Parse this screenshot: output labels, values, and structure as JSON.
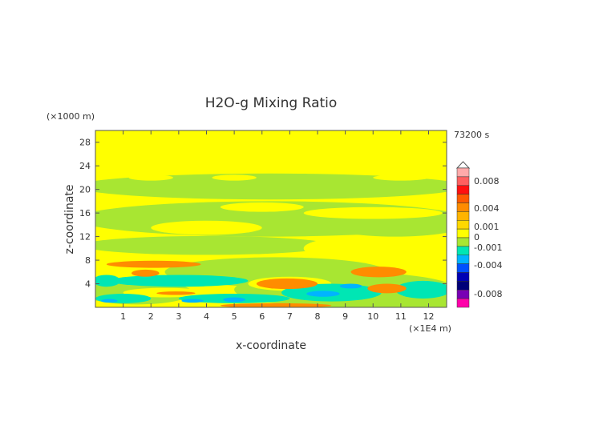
{
  "chart_data": {
    "type": "heatmap",
    "title": "H2O-g Mixing Ratio",
    "xlabel": "x-coordinate",
    "ylabel": "z-coordinate",
    "x_unit": "(×1E4 m)",
    "y_unit": "(×1000 m)",
    "time_label": "73200 s",
    "xlim": [
      0,
      12.65
    ],
    "ylim": [
      0,
      30
    ],
    "x_ticks": [
      "1",
      "2",
      "3",
      "4",
      "5",
      "6",
      "7",
      "8",
      "9",
      "10",
      "11",
      "12"
    ],
    "y_ticks": [
      "4",
      "8",
      "12",
      "16",
      "20",
      "24",
      "28"
    ],
    "colorbar": {
      "labels": [
        "0.008",
        "0.004",
        "0.001",
        "0",
        "-0.001",
        "-0.004",
        "-0.008"
      ],
      "levels": [
        {
          "min": 0.008,
          "color": "#ffaaaa"
        },
        {
          "min": 0.006,
          "color": "#ff6060"
        },
        {
          "min": 0.004,
          "color": "#ff1010"
        },
        {
          "min": 0.003,
          "color": "#ff5a00"
        },
        {
          "min": 0.002,
          "color": "#ff8c00"
        },
        {
          "min": 0.001,
          "color": "#ffb400"
        },
        {
          "min": 0.0005,
          "color": "#ffd800"
        },
        {
          "min": 0,
          "color": "#ffff00"
        },
        {
          "min": -0.0005,
          "color": "#a8e632"
        },
        {
          "min": -0.001,
          "color": "#00e6b4"
        },
        {
          "min": -0.002,
          "color": "#00b4ff"
        },
        {
          "min": -0.004,
          "color": "#0050ff"
        },
        {
          "min": -0.006,
          "color": "#0000b4"
        },
        {
          "min": -0.007,
          "color": "#000078"
        },
        {
          "min": -0.008,
          "color": "#7800b4"
        },
        {
          "min": -0.01,
          "color": "#ff00aa"
        }
      ]
    },
    "background_level_color": "#ffff00",
    "regions": [
      {
        "x": 6.3,
        "z": 20.5,
        "rx": 7,
        "rz": 2.2,
        "color": "#a8e632"
      },
      {
        "x": 6.3,
        "z": 15,
        "rx": 7,
        "rz": 3,
        "color": "#a8e632"
      },
      {
        "x": 4,
        "z": 10.5,
        "rx": 4.5,
        "rz": 1.6,
        "color": "#a8e632"
      },
      {
        "x": 10.8,
        "z": 14,
        "rx": 2.5,
        "rz": 2,
        "color": "#a8e632"
      },
      {
        "x": 6.5,
        "z": 6,
        "rx": 4,
        "rz": 2.5,
        "color": "#a8e632"
      },
      {
        "x": 9,
        "z": 3,
        "rx": 4,
        "rz": 3,
        "color": "#a8e632"
      },
      {
        "x": 1.5,
        "z": 2.5,
        "rx": 2,
        "rz": 2,
        "color": "#a8e632"
      },
      {
        "x": 11,
        "z": 1.5,
        "rx": 2.5,
        "rz": 2,
        "color": "#a8e632"
      },
      {
        "x": 2,
        "z": 22,
        "rx": 0.8,
        "rz": 0.5,
        "color": "#ffff00"
      },
      {
        "x": 5,
        "z": 22,
        "rx": 0.8,
        "rz": 0.5,
        "color": "#ffff00"
      },
      {
        "x": 11,
        "z": 22,
        "rx": 1,
        "rz": 0.5,
        "color": "#ffff00"
      },
      {
        "x": 6,
        "z": 17,
        "rx": 1.5,
        "rz": 0.8,
        "color": "#ffff00"
      },
      {
        "x": 10,
        "z": 16,
        "rx": 2.5,
        "rz": 1,
        "color": "#ffff00"
      },
      {
        "x": 4,
        "z": 13.5,
        "rx": 2,
        "rz": 1.2,
        "color": "#ffff00"
      },
      {
        "x": 9.5,
        "z": 10,
        "rx": 2,
        "rz": 2,
        "color": "#ffff00"
      },
      {
        "x": 1.5,
        "z": 18,
        "rx": 1.2,
        "rz": 0.6,
        "color": "#ffff00"
      },
      {
        "x": 7,
        "z": 4,
        "rx": 1.5,
        "rz": 1.2,
        "color": "#ffff00"
      },
      {
        "x": 2.5,
        "z": 2.5,
        "rx": 1.5,
        "rz": 0.8,
        "color": "#ffff00"
      },
      {
        "x": 3,
        "z": 4.5,
        "rx": 2.5,
        "rz": 1,
        "color": "#00e6b4"
      },
      {
        "x": 0.4,
        "z": 4.5,
        "rx": 0.5,
        "rz": 1,
        "color": "#00e6b4"
      },
      {
        "x": 5,
        "z": 1.5,
        "rx": 2,
        "rz": 0.8,
        "color": "#00e6b4"
      },
      {
        "x": 8.5,
        "z": 2.5,
        "rx": 1.8,
        "rz": 1.5,
        "color": "#00e6b4"
      },
      {
        "x": 11.8,
        "z": 3,
        "rx": 1,
        "rz": 1.5,
        "color": "#00e6b4"
      },
      {
        "x": 1,
        "z": 1.5,
        "rx": 1,
        "rz": 0.8,
        "color": "#00e6b4"
      },
      {
        "x": 8.2,
        "z": 2.3,
        "rx": 0.6,
        "rz": 0.5,
        "color": "#00b4ff"
      },
      {
        "x": 9.2,
        "z": 3.6,
        "rx": 0.4,
        "rz": 0.4,
        "color": "#00b4ff"
      },
      {
        "x": 5,
        "z": 1.3,
        "rx": 0.4,
        "rz": 0.4,
        "color": "#00b4ff"
      },
      {
        "x": 3.5,
        "z": 1.1,
        "rx": 0.4,
        "rz": 0.3,
        "color": "#00b4ff"
      },
      {
        "x": 0.5,
        "z": 1.1,
        "rx": 0.3,
        "rz": 0.3,
        "color": "#00b4ff"
      },
      {
        "x": 2.1,
        "z": 7.3,
        "rx": 1.7,
        "rz": 0.6,
        "color": "#ff8c00"
      },
      {
        "x": 1.8,
        "z": 5.8,
        "rx": 0.5,
        "rz": 0.6,
        "color": "#ff8c00"
      },
      {
        "x": 6.9,
        "z": 4,
        "rx": 1.1,
        "rz": 0.9,
        "color": "#ff8c00"
      },
      {
        "x": 10.2,
        "z": 6,
        "rx": 1,
        "rz": 0.9,
        "color": "#ff8c00"
      },
      {
        "x": 10.5,
        "z": 3.2,
        "rx": 0.7,
        "rz": 0.8,
        "color": "#ff8c00"
      },
      {
        "x": 2.9,
        "z": 2.4,
        "rx": 0.7,
        "rz": 0.3,
        "color": "#ff8c00"
      },
      {
        "x": 6.5,
        "z": 0.3,
        "rx": 2,
        "rz": 0.4,
        "color": "#ff8c00"
      }
    ]
  }
}
